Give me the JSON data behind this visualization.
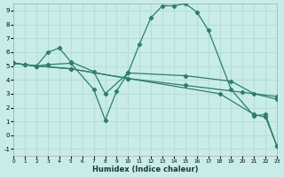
{
  "xlabel": "Humidex (Indice chaleur)",
  "bg_color": "#c8ede8",
  "grid_color": "#b8ddd8",
  "line_color": "#2e7d6e",
  "xlim": [
    0,
    23
  ],
  "ylim": [
    -1.5,
    9.5
  ],
  "xticks": [
    0,
    1,
    2,
    3,
    4,
    5,
    6,
    7,
    8,
    9,
    10,
    11,
    12,
    13,
    14,
    15,
    16,
    17,
    18,
    19,
    20,
    21,
    22,
    23
  ],
  "yticks": [
    -1,
    0,
    1,
    2,
    3,
    4,
    5,
    6,
    7,
    8,
    9
  ],
  "lines": [
    {
      "x": [
        0,
        1,
        2,
        3,
        5,
        7,
        8,
        9,
        10,
        11,
        12,
        13,
        14,
        15,
        16,
        17,
        19,
        21,
        22,
        23
      ],
      "y": [
        5.2,
        5.1,
        5.0,
        5.1,
        5.2,
        3.3,
        1.1,
        3.2,
        4.5,
        6.6,
        8.5,
        9.35,
        9.35,
        9.5,
        8.9,
        7.6,
        3.3,
        1.4,
        1.5,
        -0.8
      ]
    },
    {
      "x": [
        0,
        2,
        5,
        10,
        15,
        20,
        23
      ],
      "y": [
        5.2,
        5.0,
        4.8,
        4.1,
        3.6,
        3.1,
        2.8
      ]
    },
    {
      "x": [
        0,
        1,
        2,
        3,
        4,
        5,
        7,
        8,
        10,
        15,
        19,
        21,
        23
      ],
      "y": [
        5.2,
        5.1,
        5.0,
        6.0,
        6.3,
        5.3,
        4.6,
        3.0,
        4.5,
        4.3,
        3.9,
        3.0,
        2.6
      ]
    },
    {
      "x": [
        0,
        2,
        5,
        10,
        18,
        21,
        22,
        23
      ],
      "y": [
        5.2,
        5.0,
        4.8,
        4.1,
        3.0,
        1.5,
        1.3,
        -0.8
      ]
    }
  ]
}
